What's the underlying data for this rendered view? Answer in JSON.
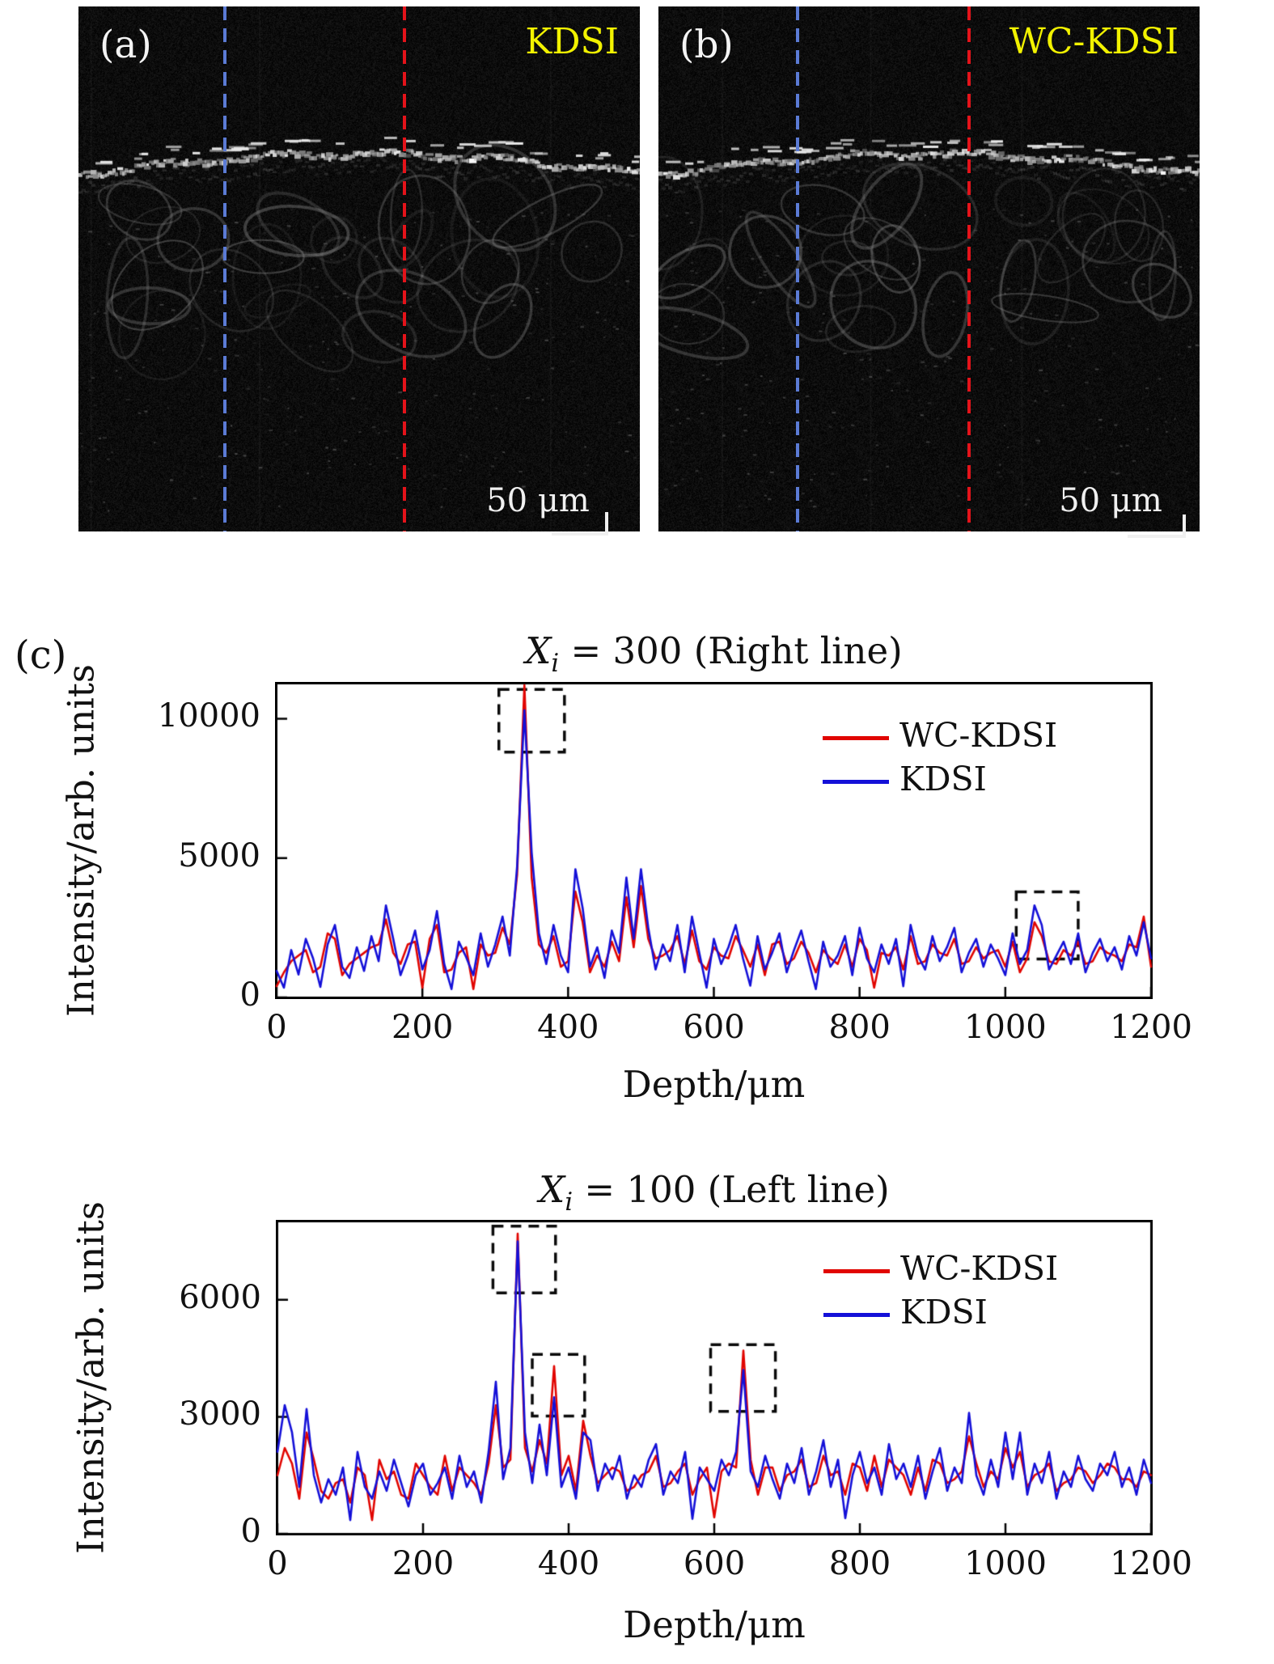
{
  "figure": {
    "panel_c_label": "(c)",
    "panel_a": {
      "label": "(a)",
      "tag": "KDSI",
      "scalebar_text": "50 μm"
    },
    "panel_b": {
      "label": "(b)",
      "tag": "WC-KDSI",
      "scalebar_text": "50 μm"
    },
    "colors": {
      "wc_kdsi_red": "#e10500",
      "kdsi_blue": "#1410d8",
      "tag_yellow": "#f2f200",
      "panel_dash_blue": "#5b7bd5",
      "panel_dash_red": "#e4131a"
    }
  },
  "chart_data": [
    {
      "type": "line",
      "title": {
        "var": "X",
        "sub": "i",
        "rest": " = 300 (Right line)"
      },
      "xlabel": "Depth/μm",
      "ylabel": "Intensity/arb. units",
      "xlim": [
        0,
        1200
      ],
      "ylim": [
        0,
        11260
      ],
      "xticks": [
        0,
        200,
        400,
        600,
        800,
        1000,
        1200
      ],
      "yticks": [
        0,
        5000,
        10000
      ],
      "grid": false,
      "legend_position": "upper right",
      "x_start": 0,
      "x_step": 10,
      "series": [
        {
          "name": "WC-KDSI",
          "color": "#e10500",
          "values": [
            400,
            900,
            1300,
            1500,
            1700,
            900,
            1100,
            2300,
            2100,
            800,
            1200,
            1400,
            1600,
            1800,
            1900,
            2800,
            1600,
            1200,
            1900,
            2000,
            350,
            2100,
            2600,
            900,
            1000,
            1600,
            1800,
            300,
            1900,
            1500,
            1600,
            2500,
            1900,
            4400,
            11200,
            4300,
            1900,
            1600,
            2200,
            1100,
            1300,
            3800,
            2700,
            900,
            1500,
            1100,
            2000,
            1300,
            3600,
            1800,
            4000,
            2100,
            1400,
            1500,
            1700,
            2200,
            1200,
            2400,
            1300,
            1000,
            1800,
            1500,
            1400,
            2200,
            1700,
            1100,
            1900,
            800,
            1900,
            2000,
            1200,
            1400,
            2000,
            1600,
            900,
            1700,
            1400,
            1200,
            1900,
            1100,
            2100,
            1700,
            350,
            1600,
            1500,
            1800,
            1000,
            2200,
            1200,
            1300,
            1900,
            1600,
            1500,
            2100,
            1200,
            1300,
            1800,
            1400,
            1600,
            1700,
            1100,
            2000,
            900,
            1400,
            2700,
            2200,
            1300,
            1200,
            1700,
            1500,
            2000,
            1200,
            1300,
            1800,
            1600,
            1500,
            1300,
            1900,
            1800,
            2900,
            1100
          ]
        },
        {
          "name": "KDSI",
          "color": "#1410d8",
          "values": [
            950,
            350,
            1700,
            820,
            2100,
            1400,
            380,
            1900,
            2600,
            1100,
            700,
            1800,
            950,
            2200,
            1300,
            3300,
            2100,
            800,
            1500,
            2400,
            1000,
            1700,
            3100,
            1200,
            300,
            2000,
            1450,
            800,
            2300,
            1100,
            1900,
            2900,
            1500,
            4700,
            10300,
            5200,
            2300,
            1200,
            2600,
            1500,
            900,
            4600,
            3200,
            1100,
            1800,
            700,
            2400,
            1600,
            4300,
            2100,
            4600,
            2500,
            1000,
            1900,
            1300,
            2600,
            900,
            2900,
            1600,
            350,
            2100,
            1200,
            1800,
            2600,
            1400,
            420,
            2200,
            1000,
            1600,
            2300,
            900,
            1700,
            2400,
            1300,
            300,
            2000,
            1100,
            1500,
            2200,
            800,
            2500,
            1400,
            900,
            1900,
            1200,
            2100,
            400,
            2600,
            1500,
            1000,
            2200,
            1300,
            1800,
            2500,
            900,
            1600,
            2100,
            1100,
            1900,
            1400,
            800,
            2300,
            1200,
            1700,
            3300,
            2600,
            1000,
            1500,
            2000,
            1200,
            2300,
            900,
            1600,
            2100,
            1300,
            1800,
            1000,
            2200,
            1500,
            2700,
            1400
          ]
        }
      ],
      "annotations": [
        {
          "x0": 305,
          "x1": 395,
          "y0": 8800,
          "y1": 11050
        },
        {
          "x0": 1015,
          "x1": 1100,
          "y0": 1380,
          "y1": 3790
        }
      ]
    },
    {
      "type": "line",
      "title": {
        "var": "X",
        "sub": "i",
        "rest": " = 100 (Left line)"
      },
      "xlabel": "Depth/μm",
      "ylabel": "Intensity/arb. units",
      "xlim": [
        0,
        1200
      ],
      "ylim": [
        0,
        8010
      ],
      "xticks": [
        0,
        200,
        400,
        600,
        800,
        1000,
        1200
      ],
      "yticks": [
        0,
        3000,
        6000
      ],
      "grid": false,
      "legend_position": "upper right",
      "x_start": 0,
      "x_step": 10,
      "series": [
        {
          "name": "WC-KDSI",
          "color": "#e10500",
          "values": [
            1500,
            2200,
            1800,
            900,
            2600,
            1900,
            1100,
            900,
            1300,
            1400,
            800,
            1700,
            1500,
            350,
            1900,
            1400,
            1600,
            1000,
            900,
            1800,
            1500,
            1200,
            1000,
            2000,
            1100,
            1700,
            1500,
            1300,
            1000,
            1800,
            3300,
            1700,
            1900,
            7700,
            2200,
            1600,
            2400,
            1800,
            4300,
            1500,
            2000,
            1100,
            2900,
            2000,
            1300,
            1500,
            1700,
            1600,
            1100,
            1200,
            1500,
            1600,
            2000,
            1200,
            1300,
            1600,
            1800,
            1000,
            1400,
            1700,
            420,
            1600,
            1800,
            1700,
            4700,
            1900,
            1000,
            1700,
            1700,
            1100,
            1500,
            1600,
            1900,
            1200,
            1300,
            2000,
            1500,
            1600,
            1000,
            1800,
            1700,
            1100,
            2000,
            1200,
            1900,
            1700,
            1500,
            1000,
            1700,
            1100,
            1900,
            1800,
            1300,
            1400,
            1600,
            2500,
            1800,
            1200,
            1600,
            1400,
            2200,
            1700,
            2100,
            1200,
            1500,
            1600,
            1800,
            1100,
            1300,
            1400,
            1700,
            1600,
            1300,
            1500,
            1800,
            1700,
            1400,
            1400,
            1200,
            1600,
            1500
          ]
        },
        {
          "name": "KDSI",
          "color": "#1410d8",
          "values": [
            2100,
            3300,
            2600,
            1200,
            3200,
            1500,
            800,
            1400,
            1000,
            1700,
            350,
            2100,
            1200,
            900,
            1600,
            1100,
            1900,
            1300,
            700,
            1500,
            1800,
            1000,
            1300,
            1700,
            900,
            2000,
            1200,
            1600,
            800,
            2100,
            3900,
            1400,
            2200,
            7500,
            2600,
            1300,
            2800,
            1500,
            3500,
            1200,
            1700,
            900,
            2600,
            2400,
            1100,
            1800,
            1400,
            2000,
            900,
            1500,
            1200,
            1900,
            2300,
            1000,
            1600,
            1300,
            2100,
            380,
            1700,
            1400,
            1100,
            1900,
            1500,
            2100,
            4200,
            1600,
            1200,
            2000,
            1400,
            900,
            1800,
            1300,
            2200,
            1000,
            1600,
            2400,
            1200,
            1900,
            400,
            1500,
            2100,
            1300,
            1700,
            1000,
            2300,
            1400,
            1800,
            1200,
            2000,
            900,
            1600,
            2200,
            1100,
            1700,
            1300,
            3100,
            1500,
            1000,
            1900,
            1200,
            2600,
            1400,
            2600,
            1000,
            1800,
            1300,
            2100,
            900,
            1600,
            1200,
            2000,
            1400,
            1100,
            1800,
            1500,
            2100,
            1200,
            1700,
            1000,
            1900,
            1300
          ]
        }
      ],
      "annotations": [
        {
          "x0": 296,
          "x1": 382,
          "y0": 6180,
          "y1": 7890
        },
        {
          "x0": 350,
          "x1": 422,
          "y0": 3020,
          "y1": 4600
        },
        {
          "x0": 595,
          "x1": 684,
          "y0": 3140,
          "y1": 4850
        }
      ]
    }
  ]
}
